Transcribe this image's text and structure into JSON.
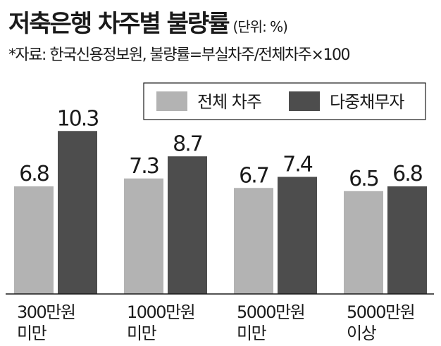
{
  "header": {
    "title": "저축은행 차주별 불량률",
    "unit": "(단위: %)",
    "source": "*자료: 한국신용정보원, 불량률=부실차주/전체차주×100"
  },
  "colors": {
    "series1": "#b3b3b3",
    "series2": "#4d4d4d",
    "axis": "#1a1a1a",
    "text": "#1a1a1a"
  },
  "chart_data": {
    "type": "bar",
    "categories": [
      [
        "300만원",
        "미만"
      ],
      [
        "1000만원",
        "미만"
      ],
      [
        "5000만원",
        "미만"
      ],
      [
        "5000만원",
        "이상"
      ]
    ],
    "series": [
      {
        "name": "전체 차주",
        "values": [
          6.8,
          7.3,
          6.7,
          6.5
        ],
        "labels": [
          "6.8",
          "7.3",
          "6.7",
          "6.5"
        ]
      },
      {
        "name": "다중채무자",
        "values": [
          10.3,
          8.7,
          7.4,
          6.8
        ],
        "labels": [
          "10.3",
          "8.7",
          "7.4",
          "6.8"
        ]
      }
    ],
    "legend_position": "top-right",
    "grid": false
  }
}
